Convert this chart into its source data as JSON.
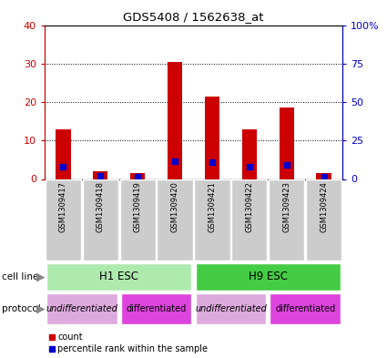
{
  "title": "GDS5408 / 1562638_at",
  "samples": [
    "GSM1309417",
    "GSM1309418",
    "GSM1309419",
    "GSM1309420",
    "GSM1309421",
    "GSM1309422",
    "GSM1309423",
    "GSM1309424"
  ],
  "counts": [
    13,
    2,
    1.5,
    30.5,
    21.5,
    13,
    18.5,
    1.5
  ],
  "percentiles": [
    8,
    2,
    1.5,
    11.5,
    11,
    8,
    9,
    1.5
  ],
  "ylim_left": [
    0,
    40
  ],
  "ylim_right": [
    0,
    100
  ],
  "yticks_left": [
    0,
    10,
    20,
    30,
    40
  ],
  "yticks_right": [
    0,
    25,
    50,
    75,
    100
  ],
  "ytick_labels_right": [
    "0",
    "25",
    "50",
    "75",
    "100%"
  ],
  "bar_color": "#cc0000",
  "marker_color": "#0000cc",
  "left_tick_color": "#cc0000",
  "right_tick_color": "#0000cc",
  "cell_line_light_color": "#aeeaae",
  "cell_line_dark_color": "#44cc44",
  "undiff_color": "#ddaadd",
  "diff_color": "#dd44dd",
  "bg_color": "#ffffff",
  "sample_box_color": "#cccccc",
  "bar_width": 0.4
}
